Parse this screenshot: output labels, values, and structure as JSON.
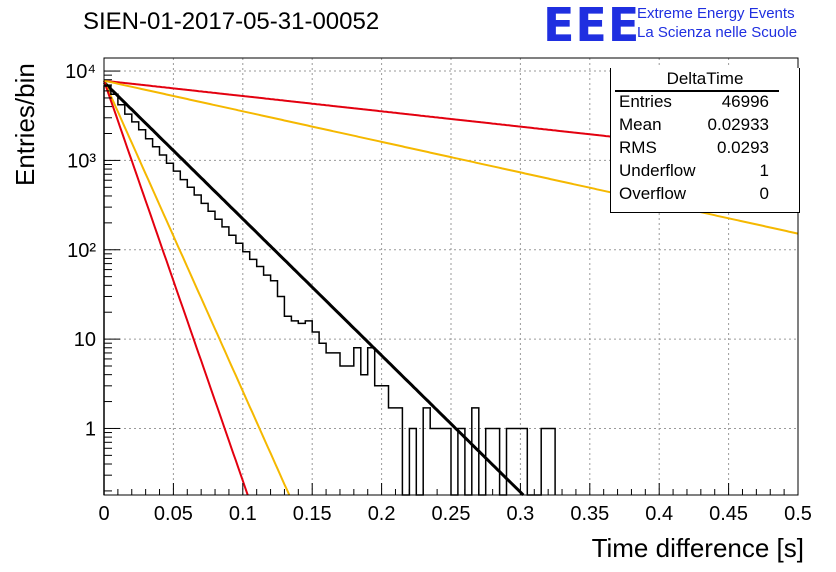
{
  "title": "SIEN-01-2017-05-31-00052",
  "logo": {
    "mark": "EEE",
    "line1": "Extreme Energy Events",
    "line2": "La Scienza nelle Scuole",
    "color": "#1f2fe0"
  },
  "stats": {
    "title": "DeltaTime",
    "rows": [
      {
        "label": "Entries",
        "value": "46996"
      },
      {
        "label": "Mean",
        "value": "0.02933"
      },
      {
        "label": "RMS",
        "value": "0.0293"
      },
      {
        "label": "Underflow",
        "value": "1"
      },
      {
        "label": "Overflow",
        "value": "0"
      }
    ]
  },
  "chart_data": {
    "type": "histogram",
    "title": "SIEN-01-2017-05-31-00052",
    "xlabel": "Time difference [s]",
    "ylabel": "Entries/bin",
    "xlim": [
      0,
      0.5
    ],
    "ylim": [
      0.18,
      14000
    ],
    "yscale": "log",
    "grid": true,
    "x_ticks": [
      "0",
      "0.05",
      "0.1",
      "0.15",
      "0.2",
      "0.25",
      "0.3",
      "0.35",
      "0.4",
      "0.45",
      "0.5"
    ],
    "y_ticks": [
      {
        "value": 1,
        "label": "1"
      },
      {
        "value": 10,
        "label": "10"
      },
      {
        "value": 100,
        "label": "10²"
      },
      {
        "value": 1000,
        "label": "10³"
      },
      {
        "value": 10000,
        "label": "10⁴"
      }
    ],
    "histogram": {
      "bin_width": 0.005,
      "counts": [
        6800,
        5500,
        4200,
        3300,
        2700,
        2200,
        1750,
        1420,
        1150,
        930,
        760,
        610,
        500,
        410,
        330,
        270,
        220,
        180,
        145,
        118,
        95,
        78,
        65,
        52,
        45,
        30,
        18,
        16,
        15,
        16,
        12,
        9,
        7,
        7,
        5,
        5,
        8,
        4,
        8,
        3,
        3,
        1.7,
        1.7,
        0.1,
        1,
        0.1,
        1.7,
        1,
        1,
        1,
        0.1,
        1,
        0.1,
        1.7,
        0.1,
        1,
        1,
        0.1,
        1,
        1,
        1,
        0.1,
        0.1,
        1,
        1
      ],
      "color": "#000000"
    },
    "fits": [
      {
        "name": "fit",
        "color": "#000000",
        "amplitude": 7500,
        "tau": 0.0284,
        "width": 3
      },
      {
        "name": "upper-fast",
        "color": "#f5b800",
        "amplitude": 7800,
        "tau": 0.0125,
        "width": 2
      },
      {
        "name": "lower-fast",
        "color": "#e3000f",
        "amplitude": 7800,
        "tau": 0.0097,
        "width": 2
      },
      {
        "name": "upper-slow",
        "color": "#e3000f",
        "amplitude": 7800,
        "tau": 0.2535,
        "width": 2
      },
      {
        "name": "lower-slow",
        "color": "#f5b800",
        "amplitude": 7800,
        "tau": 0.1269,
        "width": 2
      }
    ]
  }
}
